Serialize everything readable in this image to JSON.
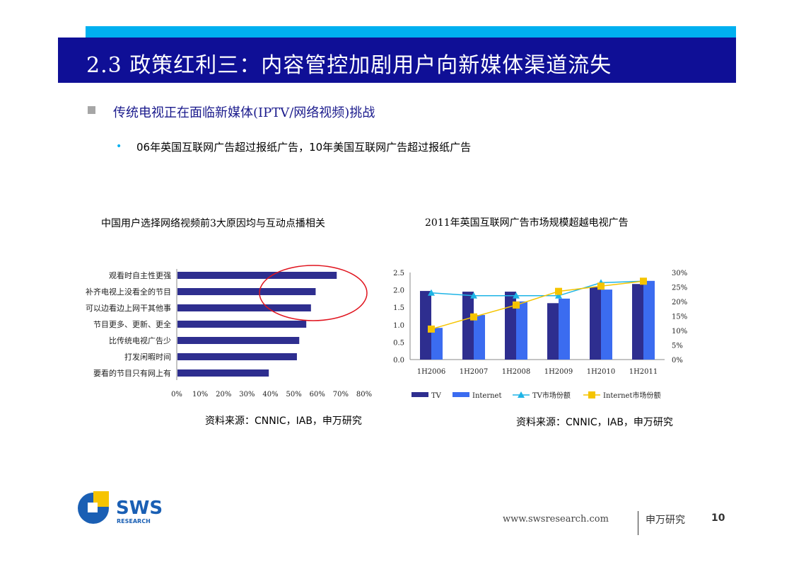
{
  "header": {
    "title": "2.3 政策红利三：内容管控加剧用户向新媒体渠道流失",
    "accent_color": "#00b0f0",
    "bar_color": "#0f0f96"
  },
  "bullets": {
    "level1": "传统电视正在面临新媒体(IPTV/网络视频)挑战",
    "level2": "06年英国互联网广告超过报纸广告，10年美国互联网广告超过报纸广告"
  },
  "chart_data": [
    {
      "type": "bar",
      "orientation": "horizontal",
      "title": "中国用户选择网络视频前3大原因均与互动点播相关",
      "categories": [
        "观看时自主性更强",
        "补齐电视上没看全的节目",
        "可以边看边上网干其他事",
        "节目更多、更新、更全",
        "比传统电视广告少",
        "打发闲暇时间",
        "要看的节目只有网上有"
      ],
      "values": [
        68,
        59,
        57,
        55,
        52,
        51,
        39
      ],
      "unit": "%",
      "xlim": [
        0,
        80
      ],
      "xticks": [
        "0%",
        "10%",
        "20%",
        "30%",
        "40%",
        "50%",
        "60%",
        "70%",
        "80%"
      ],
      "bar_color": "#2e2e8f",
      "annotation": "red ellipse around top 3 bars",
      "source": "资料来源：CNNIC，IAB，申万研究"
    },
    {
      "type": "bar+line",
      "title": "2011年英国互联网广告市场规模超越电视广告",
      "categories": [
        "1H2006",
        "1H2007",
        "1H2008",
        "1H2009",
        "1H2010",
        "1H2011"
      ],
      "series": [
        {
          "name": "TV",
          "type": "bar",
          "axis": "left",
          "color": "#2e2e8f",
          "values": [
            1.97,
            1.95,
            1.95,
            1.62,
            2.08,
            2.17
          ]
        },
        {
          "name": "Internet",
          "type": "bar",
          "axis": "left",
          "color": "#3b6cf0",
          "values": [
            0.91,
            1.28,
            1.67,
            1.75,
            2.01,
            2.26
          ]
        },
        {
          "name": "TV市场份额",
          "type": "line",
          "axis": "right",
          "color": "#1eb4e6",
          "values": [
            23.0,
            22.0,
            22.0,
            22.0,
            26.5,
            27.0
          ]
        },
        {
          "name": "Internet市场份额",
          "type": "line",
          "axis": "right",
          "color": "#f5c400",
          "values": [
            10.5,
            14.7,
            18.8,
            23.5,
            25.3,
            27.0
          ]
        }
      ],
      "ylim_left": [
        0,
        2.5
      ],
      "yticks_left": [
        "0.0",
        "0.5",
        "1.0",
        "1.5",
        "2.0",
        "2.5"
      ],
      "ylim_right": [
        0,
        30
      ],
      "yticks_right": [
        "0%",
        "5%",
        "10%",
        "15%",
        "20%",
        "25%",
        "30%"
      ],
      "legend": "bottom",
      "source": "资料来源：CNNIC，IAB，申万研究"
    }
  ],
  "footer": {
    "url": "www.swsresearch.com",
    "brand": "申万研究",
    "page": "10",
    "logo_text": "SWS",
    "logo_sub": "RESEARCH"
  }
}
